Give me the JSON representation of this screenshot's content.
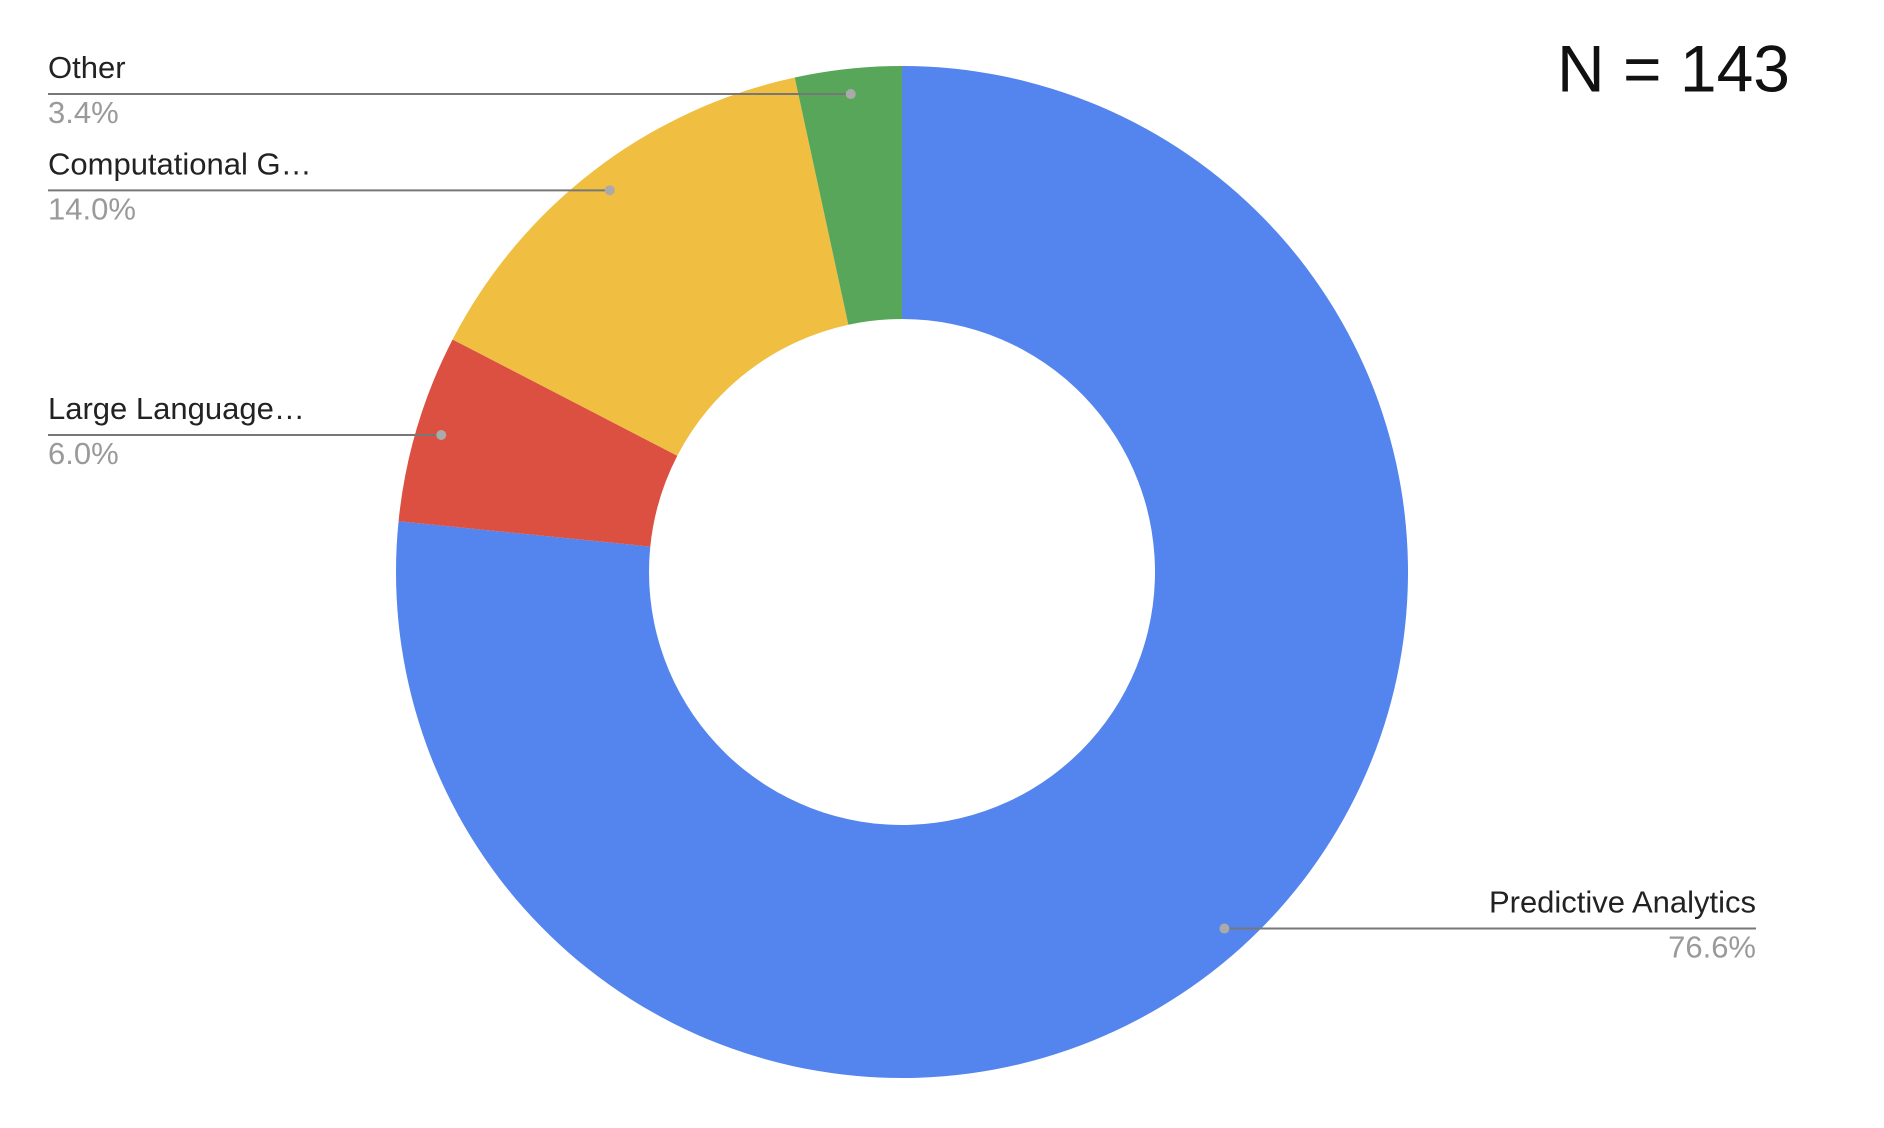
{
  "chart_data": {
    "type": "donut",
    "annotation": "N = 143",
    "categories": [
      "Predictive Analytics",
      "Large Language…",
      "Computational G…",
      "Other"
    ],
    "values": [
      76.6,
      6.0,
      14.0,
      3.4
    ],
    "value_labels": [
      "76.6%",
      "6.0%",
      "14.0%",
      "3.4%"
    ],
    "colors": [
      "#5484ed",
      "#db5040",
      "#f0be41",
      "#57a65a"
    ]
  }
}
